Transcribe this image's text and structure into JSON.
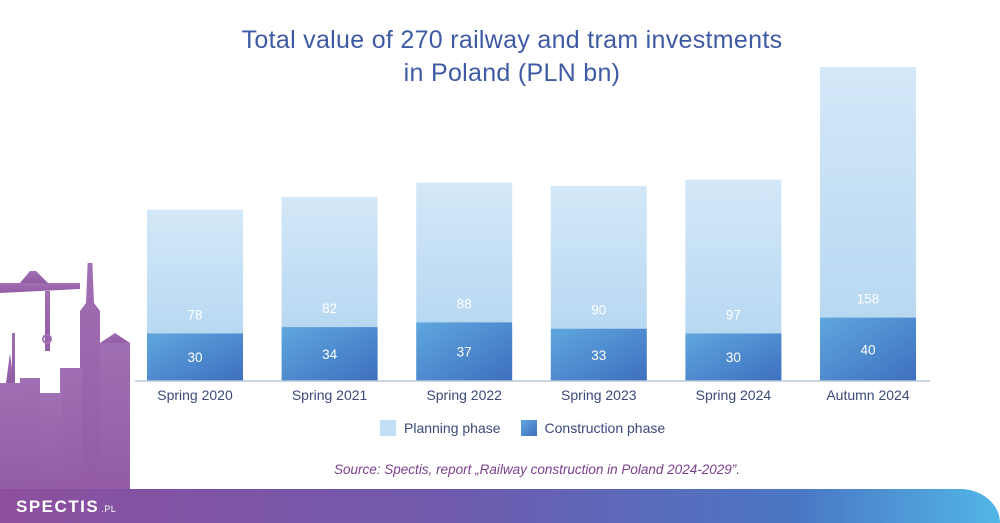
{
  "title_lines": [
    "Total value of 270 railway and tram investments",
    "in Poland (PLN bn)"
  ],
  "colors": {
    "planning": "#c2dff5",
    "construction_top": "#5fa7de",
    "construction_bottom": "#3e6fc0",
    "title": "#3f5aa4",
    "source": "#7b3f8e"
  },
  "chart_data": {
    "type": "bar",
    "stacked": true,
    "title": "Total value of 270 railway and tram investments in Poland (PLN bn)",
    "categories": [
      "Spring 2020",
      "Spring 2021",
      "Spring 2022",
      "Spring 2023",
      "Spring 2024",
      "Autumn 2024"
    ],
    "series": [
      {
        "name": "Construction phase",
        "values": [
          30,
          34,
          37,
          33,
          30,
          40
        ]
      },
      {
        "name": "Planning phase",
        "values": [
          78,
          82,
          88,
          90,
          97,
          158
        ]
      }
    ],
    "xlabel": "",
    "ylabel": "",
    "grid": false,
    "legend_position": "bottom"
  },
  "legend": {
    "planning": "Planning phase",
    "construction": "Construction phase"
  },
  "source": "Source: Spectis, report „Railway construction in Poland 2024-2029”.",
  "brand": {
    "name": "SPECTIS",
    "suffix": ".PL"
  }
}
